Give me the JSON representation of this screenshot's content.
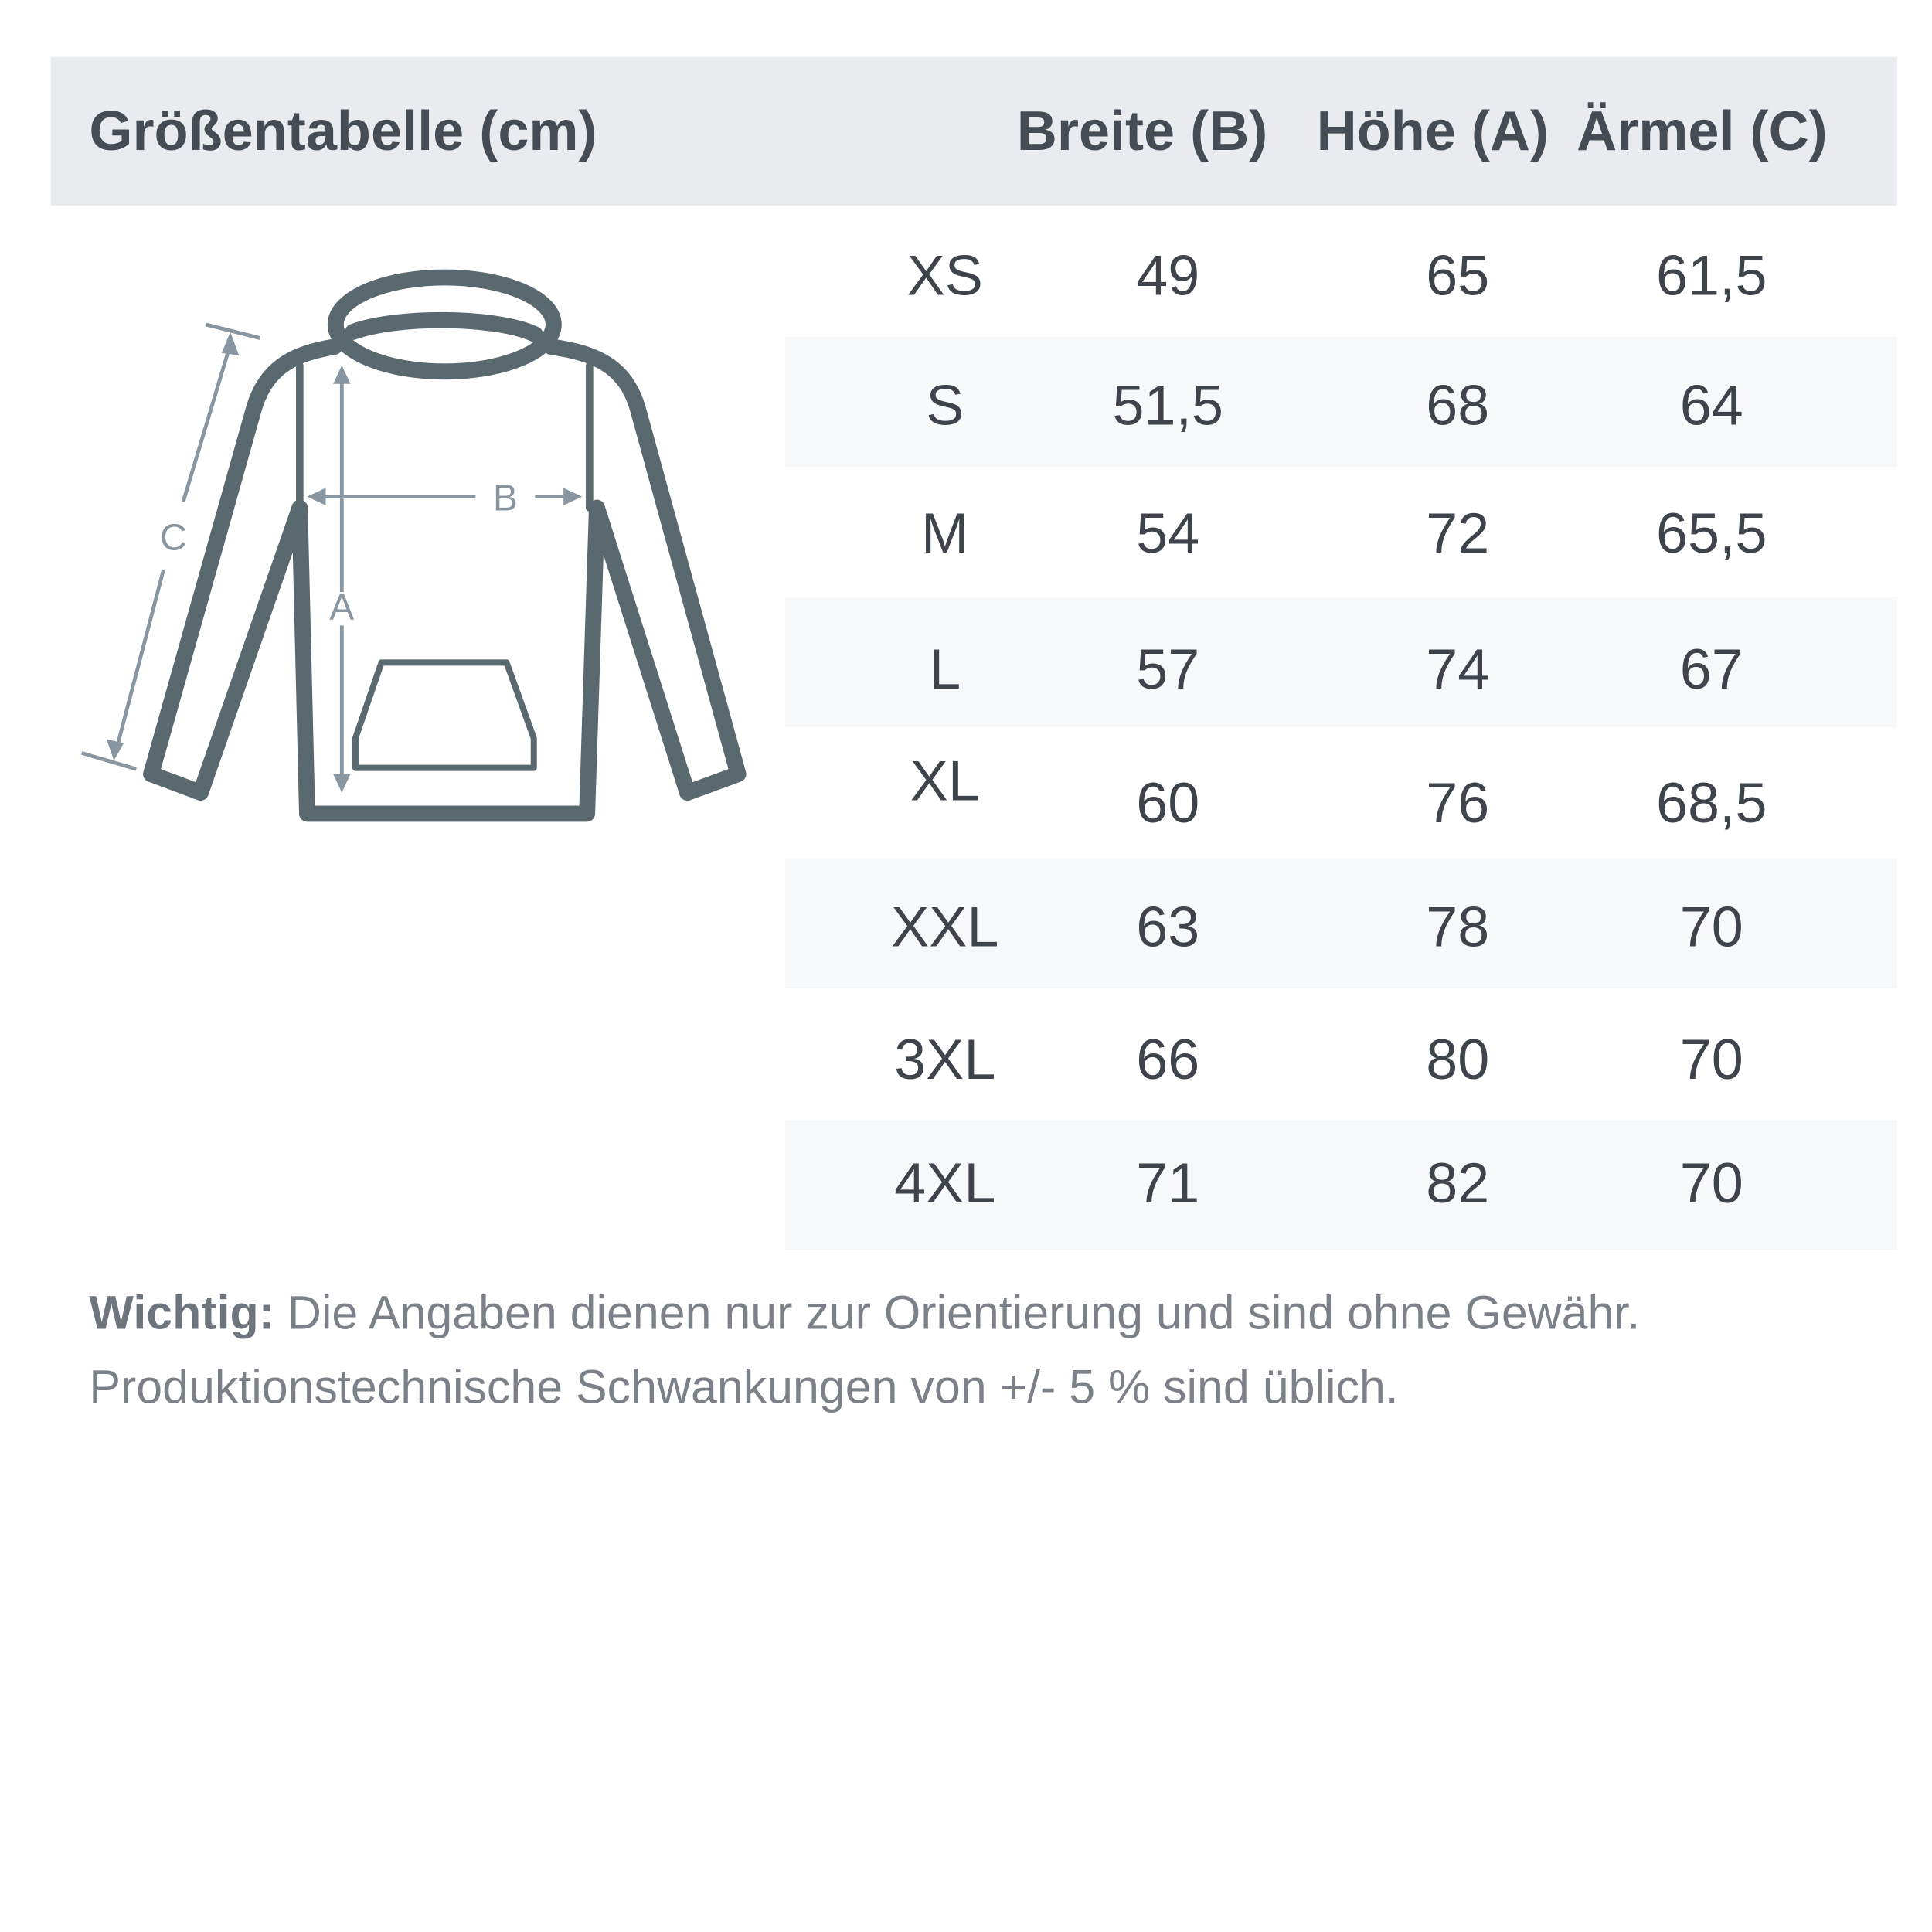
{
  "header": {
    "title": "Größentabelle (cm)",
    "col_width": "Breite (B)",
    "col_height": "Höhe (A)",
    "col_sleeve": "Ärmel (C)"
  },
  "diagram": {
    "label_a": "A",
    "label_b": "B",
    "label_c": "C",
    "line_color": "#5a6870",
    "arrow_color": "#8896a2"
  },
  "rows": [
    {
      "size": "XS",
      "width": "49",
      "height": "65",
      "sleeve": "61,5"
    },
    {
      "size": "S",
      "width": "51,5",
      "height": "68",
      "sleeve": "64"
    },
    {
      "size": "M",
      "width": "54",
      "height": "72",
      "sleeve": "65,5"
    },
    {
      "size": "L",
      "width": "57",
      "height": "74",
      "sleeve": "67"
    },
    {
      "size": "XL",
      "width": "60",
      "height": "76",
      "sleeve": "68,5"
    },
    {
      "size": "XXL",
      "width": "63",
      "height": "78",
      "sleeve": "70"
    },
    {
      "size": "3XL",
      "width": "66",
      "height": "80",
      "sleeve": "70"
    },
    {
      "size": "4XL",
      "width": "71",
      "height": "82",
      "sleeve": "70"
    }
  ],
  "note": {
    "bold": "Wichtig:",
    "line1": " Die Angaben dienen nur zur Orientierung und sind ohne Gewähr.",
    "line2": "Produktionstechnische Schwankungen von +/- 5 % sind üblich."
  }
}
